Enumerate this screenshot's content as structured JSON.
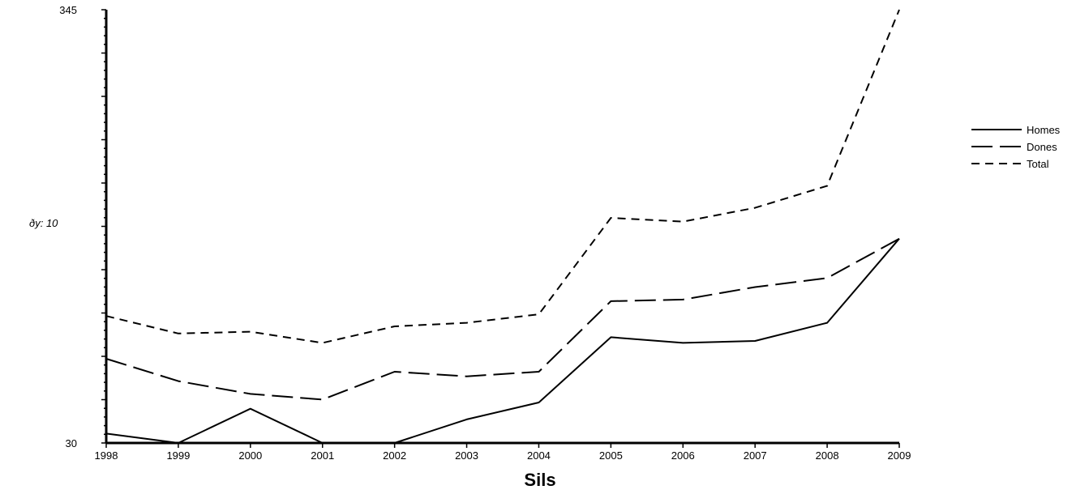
{
  "chart_data": {
    "type": "line",
    "title": "",
    "xlabel": "Sils",
    "ylabel": "ðy: 10",
    "x": [
      "1998",
      "1999",
      "2000",
      "2001",
      "2002",
      "2003",
      "2004",
      "2005",
      "2006",
      "2007",
      "2008",
      "2009"
    ],
    "ylim": [
      30,
      345
    ],
    "ytick_labels": [
      "30",
      "345"
    ],
    "legend_position": "right",
    "grid": false,
    "series": [
      {
        "name": "Homes",
        "dash": "solid",
        "values": [
          31,
          30,
          37,
          30,
          30,
          34,
          39,
          68,
          65,
          66,
          76,
          132
        ]
      },
      {
        "name": "Dones",
        "dash": "long-dash",
        "values": [
          57,
          47,
          42,
          40,
          51,
          49,
          51,
          89,
          90,
          98,
          104,
          132
        ]
      },
      {
        "name": "Total",
        "dash": "short-dash",
        "values": [
          80,
          70,
          71,
          65,
          74,
          76,
          81,
          148,
          145,
          156,
          174,
          345
        ]
      }
    ],
    "colors": {
      "line": "#000000",
      "background": "#ffffff"
    }
  }
}
